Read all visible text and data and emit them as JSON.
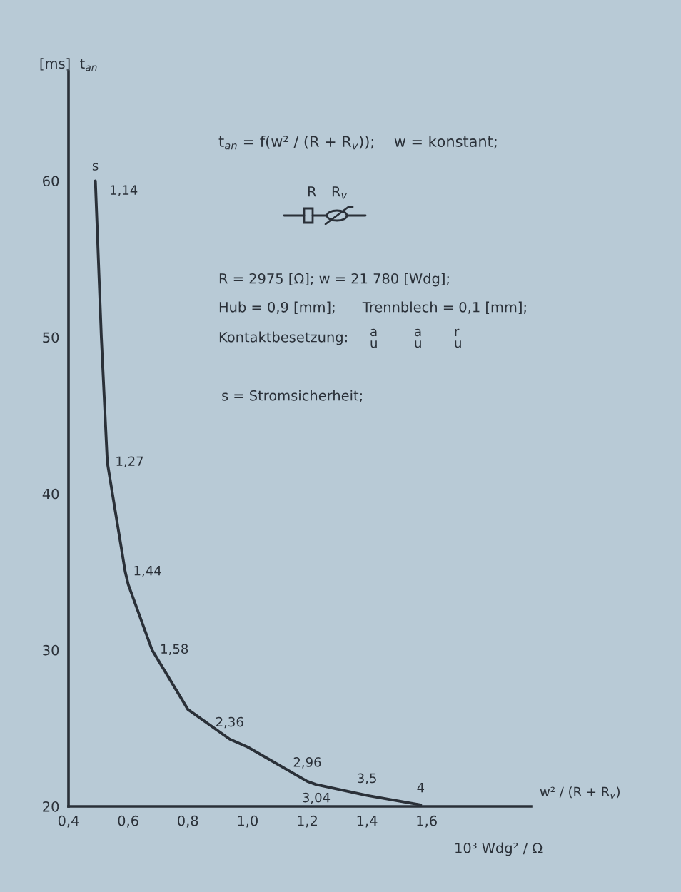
{
  "chart_data": {
    "type": "line",
    "ylabel": "[ms]  t$_{an}$",
    "xlabel": "w² / (R + R$_{v}$)",
    "x": [
      0.49,
      0.51,
      0.53,
      0.59,
      0.6,
      0.68,
      0.8,
      0.94,
      1.0,
      1.2,
      1.23,
      1.4,
      1.58
    ],
    "series": [
      {
        "color": "#2a3038",
        "values": [
          60,
          50,
          42,
          35,
          34.2,
          30,
          26.2,
          24.3,
          23.8,
          21.6,
          21.4,
          20.7,
          20.1
        ]
      }
    ],
    "xlim": [
      0.4,
      1.95
    ],
    "ylim": [
      20,
      67
    ],
    "xticks": [
      {
        "value": 0.4,
        "label": "0,4"
      },
      {
        "value": 0.6,
        "label": "0,6"
      },
      {
        "value": 0.8,
        "label": "0,8"
      },
      {
        "value": 1.0,
        "label": "1,0"
      },
      {
        "value": 1.2,
        "label": "1,2"
      },
      {
        "value": 1.4,
        "label": "1,4"
      },
      {
        "value": 1.6,
        "label": "1,6"
      }
    ],
    "yticks": [
      20,
      30,
      40,
      50,
      60
    ],
    "grid": false,
    "legend": false,
    "marker": "none",
    "line_style": "solid",
    "annotations": [
      {
        "text": "s",
        "x": 0.49,
        "y": 60
      },
      {
        "text": "1,14",
        "x": 0.49,
        "y": 60
      },
      {
        "text": "1,27",
        "x": 0.53,
        "y": 42
      },
      {
        "text": "1,44",
        "x": 0.59,
        "y": 35
      },
      {
        "text": "1,58",
        "x": 0.68,
        "y": 30
      },
      {
        "text": "2,36",
        "x": 0.94,
        "y": 24.3
      },
      {
        "text": "2,96",
        "x": 1.2,
        "y": 21.6
      },
      {
        "text": "3,04",
        "x": 1.23,
        "y": 21.4
      },
      {
        "text": "3,5",
        "x": 1.4,
        "y": 20.7
      },
      {
        "text": "4",
        "x": 1.58,
        "y": 20.1
      },
      "t$_{an}$ = f(w² / (R + R$_{v}$));    w = konstant;",
      "R",
      "R$_{v}$",
      "R = 2975 [Ω]; w = 21 780 [Wdg];",
      "Hub = 0,9 [mm];      Trennblech = 0,1 [mm];",
      "Kontaktbesetzung:",
      "a\nu",
      "a\nu",
      "r\nu",
      "s = Stromsicherheit;",
      "10³ Wdg² / Ω"
    ]
  }
}
